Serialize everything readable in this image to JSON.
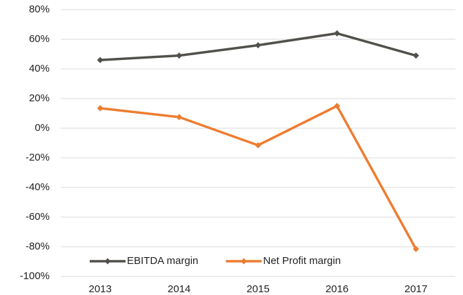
{
  "chart_data": {
    "type": "line",
    "categories": [
      "2013",
      "2014",
      "2015",
      "2016",
      "2017"
    ],
    "series": [
      {
        "name": "EBITDA margin",
        "color": "#52504a",
        "values": [
          46,
          49,
          56,
          64,
          49
        ]
      },
      {
        "name": "Net Profit margin",
        "color": "#ed7d31",
        "values": [
          13.5,
          7.5,
          -11.5,
          15,
          -81.5
        ]
      }
    ],
    "ylim": [
      -100,
      80
    ],
    "yticks": [
      {
        "value": -100,
        "label": "-100%"
      },
      {
        "value": -80,
        "label": "-80%"
      },
      {
        "value": -60,
        "label": "-60%"
      },
      {
        "value": -40,
        "label": "-40%"
      },
      {
        "value": -20,
        "label": "-20%"
      },
      {
        "value": 0,
        "label": "0%"
      },
      {
        "value": 20,
        "label": "20%"
      },
      {
        "value": 40,
        "label": "40%"
      },
      {
        "value": 60,
        "label": "60%"
      },
      {
        "value": 80,
        "label": "80%"
      }
    ],
    "grid": true,
    "legend": "lower center"
  }
}
